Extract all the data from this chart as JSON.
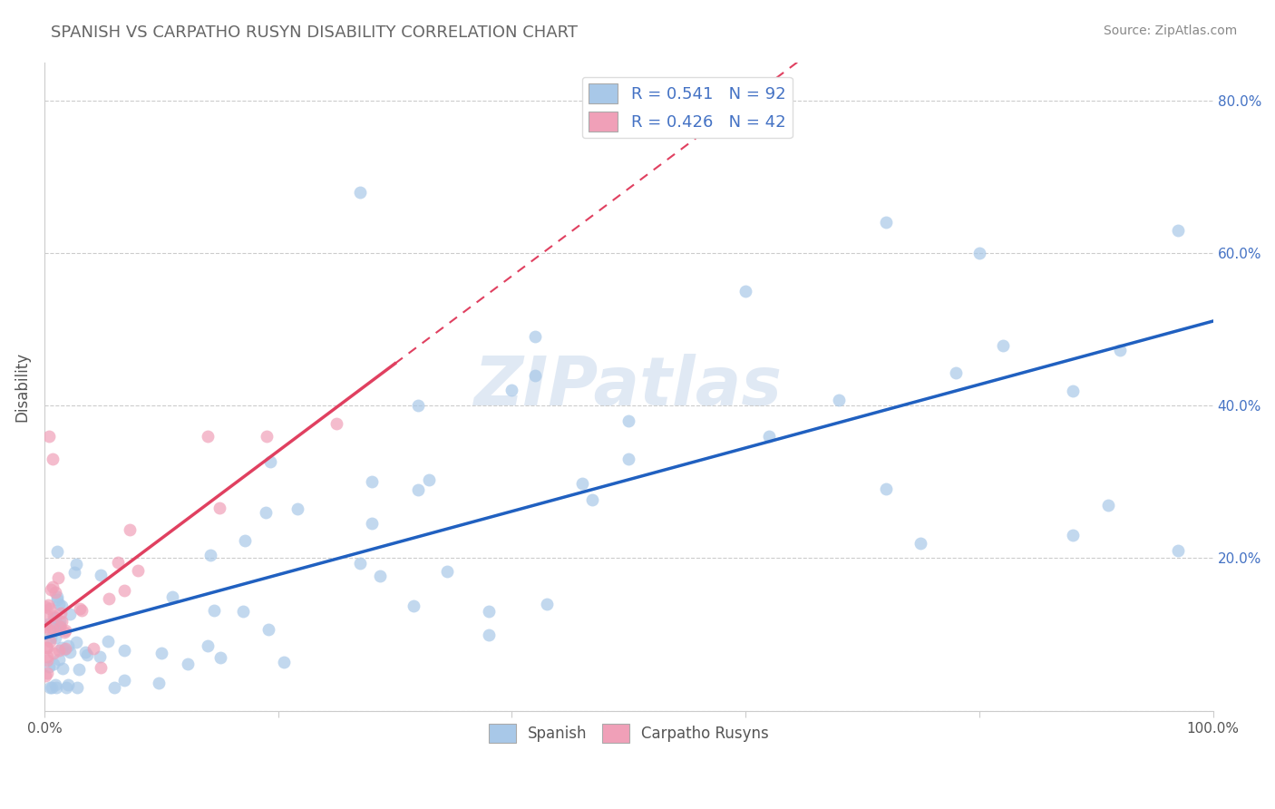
{
  "title": "SPANISH VS CARPATHO RUSYN DISABILITY CORRELATION CHART",
  "source": "Source: ZipAtlas.com",
  "ylabel": "Disability",
  "xlim": [
    0.0,
    1.0
  ],
  "ylim": [
    0.0,
    0.85
  ],
  "xtick_positions": [
    0.0,
    0.2,
    0.4,
    0.6,
    0.8,
    1.0
  ],
  "xticklabels": [
    "0.0%",
    "",
    "",
    "",
    "",
    "100.0%"
  ],
  "ytick_positions": [
    0.0,
    0.2,
    0.4,
    0.6,
    0.8
  ],
  "yticklabels": [
    "",
    "20.0%",
    "40.0%",
    "60.0%",
    "80.0%"
  ],
  "r_spanish": 0.541,
  "n_spanish": 92,
  "r_carpatho": 0.426,
  "n_carpatho": 42,
  "spanish_color": "#a8c8e8",
  "carpatho_color": "#f0a0b8",
  "spanish_line_color": "#2060c0",
  "carpatho_line_color": "#e04060",
  "grid_color": "#cccccc",
  "watermark": "ZIPatlas",
  "title_color": "#666666",
  "source_color": "#888888",
  "tick_label_color": "#4472c4"
}
